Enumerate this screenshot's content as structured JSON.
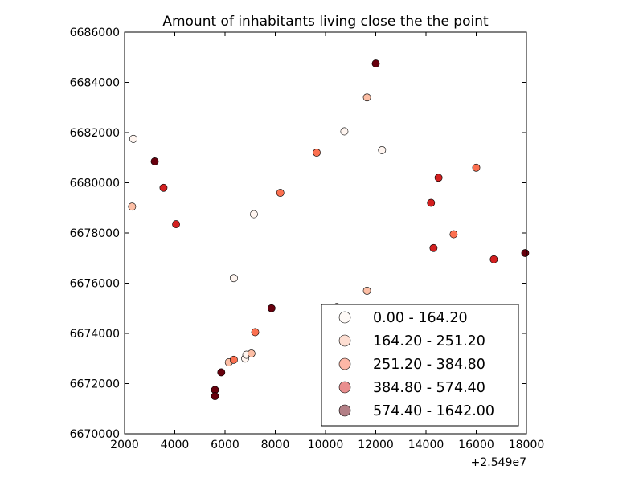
{
  "chart_data": {
    "type": "scatter",
    "title": "Amount of inhabitants living close the the point",
    "xlabel": "",
    "ylabel": "",
    "xlim": [
      2000,
      18000
    ],
    "ylim": [
      6670000,
      6686000
    ],
    "x_ticks": [
      2000,
      4000,
      6000,
      8000,
      10000,
      12000,
      14000,
      16000,
      18000
    ],
    "x_tick_labels": [
      "2000",
      "4000",
      "6000",
      "8000",
      "10000",
      "12000",
      "14000",
      "16000",
      "18000"
    ],
    "y_ticks": [
      6670000,
      6672000,
      6674000,
      6676000,
      6678000,
      6680000,
      6682000,
      6684000,
      6686000
    ],
    "y_tick_labels": [
      "6670000",
      "6672000",
      "6674000",
      "6676000",
      "6678000",
      "6680000",
      "6682000",
      "6684000",
      "6686000"
    ],
    "x_offset_label": "+2.549e7",
    "grid": false,
    "legend_position": "lower-right",
    "legend": [
      {
        "label": "0.00 - 164.20",
        "color": "#fff5f0"
      },
      {
        "label": "164.20 - 251.20",
        "color": "#fcbea5"
      },
      {
        "label": "251.20 - 384.80",
        "color": "#fb7050"
      },
      {
        "label": "384.80 - 574.40",
        "color": "#d32020"
      },
      {
        "label": "574.40 - 1642.00",
        "color": "#67000d"
      }
    ],
    "points": [
      {
        "x": 2350,
        "y": 6681750,
        "class": 0
      },
      {
        "x": 2300,
        "y": 6679050,
        "class": 1
      },
      {
        "x": 3200,
        "y": 6680850,
        "class": 4
      },
      {
        "x": 3550,
        "y": 6679800,
        "class": 3
      },
      {
        "x": 4050,
        "y": 6678350,
        "class": 3
      },
      {
        "x": 5600,
        "y": 6671750,
        "class": 4
      },
      {
        "x": 5600,
        "y": 6671500,
        "class": 4
      },
      {
        "x": 5850,
        "y": 6672450,
        "class": 4
      },
      {
        "x": 6150,
        "y": 6672850,
        "class": 1
      },
      {
        "x": 6350,
        "y": 6672950,
        "class": 2
      },
      {
        "x": 6350,
        "y": 6676200,
        "class": 0
      },
      {
        "x": 6800,
        "y": 6673000,
        "class": 0
      },
      {
        "x": 6850,
        "y": 6673150,
        "class": 0
      },
      {
        "x": 7050,
        "y": 6673200,
        "class": 1
      },
      {
        "x": 7150,
        "y": 6678750,
        "class": 0
      },
      {
        "x": 7200,
        "y": 6674050,
        "class": 2
      },
      {
        "x": 7850,
        "y": 6675000,
        "class": 4
      },
      {
        "x": 8200,
        "y": 6679600,
        "class": 2
      },
      {
        "x": 9650,
        "y": 6681200,
        "class": 2
      },
      {
        "x": 10450,
        "y": 6675050,
        "class": 3
      },
      {
        "x": 10750,
        "y": 6682050,
        "class": 0
      },
      {
        "x": 11650,
        "y": 6683400,
        "class": 1
      },
      {
        "x": 11650,
        "y": 6675700,
        "class": 1
      },
      {
        "x": 12000,
        "y": 6684750,
        "class": 4
      },
      {
        "x": 12250,
        "y": 6681300,
        "class": 0
      },
      {
        "x": 14200,
        "y": 6679200,
        "class": 3
      },
      {
        "x": 14300,
        "y": 6677400,
        "class": 3
      },
      {
        "x": 14500,
        "y": 6680200,
        "class": 3
      },
      {
        "x": 15100,
        "y": 6677950,
        "class": 2
      },
      {
        "x": 16000,
        "y": 6680600,
        "class": 2
      },
      {
        "x": 16700,
        "y": 6676950,
        "class": 3
      },
      {
        "x": 17950,
        "y": 6677200,
        "class": 4
      }
    ]
  }
}
